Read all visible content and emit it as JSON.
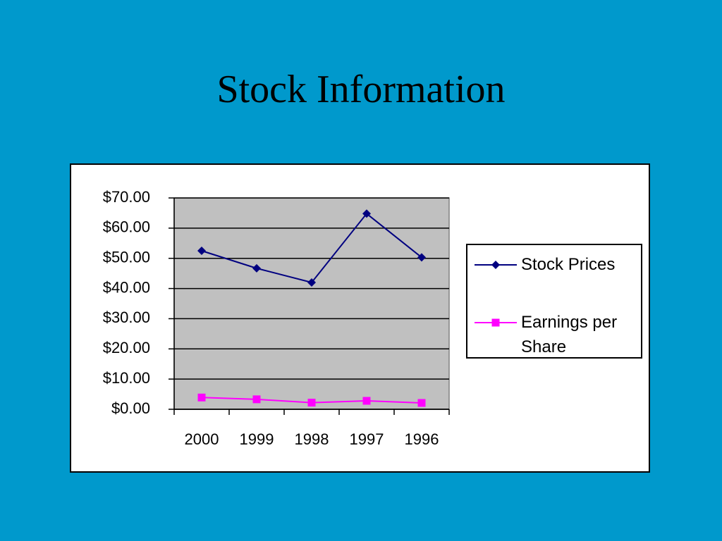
{
  "chart_data": {
    "type": "line",
    "title": "Stock Information",
    "categories": [
      "2000",
      "1999",
      "1998",
      "1997",
      "1996"
    ],
    "series": [
      {
        "name": "Stock Prices",
        "color": "#000080",
        "marker": "diamond",
        "values": [
          52.5,
          46.7,
          42.0,
          64.8,
          50.3
        ]
      },
      {
        "name": "Earnings per Share",
        "color": "#ff00ff",
        "marker": "square",
        "values": [
          3.9,
          3.3,
          2.2,
          2.8,
          2.1
        ]
      }
    ],
    "ylim": [
      0,
      70
    ],
    "yticks": [
      {
        "value": 0,
        "label": "$0.00"
      },
      {
        "value": 10,
        "label": "$10.00"
      },
      {
        "value": 20,
        "label": "$20.00"
      },
      {
        "value": 30,
        "label": "$30.00"
      },
      {
        "value": 40,
        "label": "$40.00"
      },
      {
        "value": 50,
        "label": "$50.00"
      },
      {
        "value": 60,
        "label": "$60.00"
      },
      {
        "value": 70,
        "label": "$70.00"
      }
    ],
    "grid": true,
    "legend": "right"
  }
}
